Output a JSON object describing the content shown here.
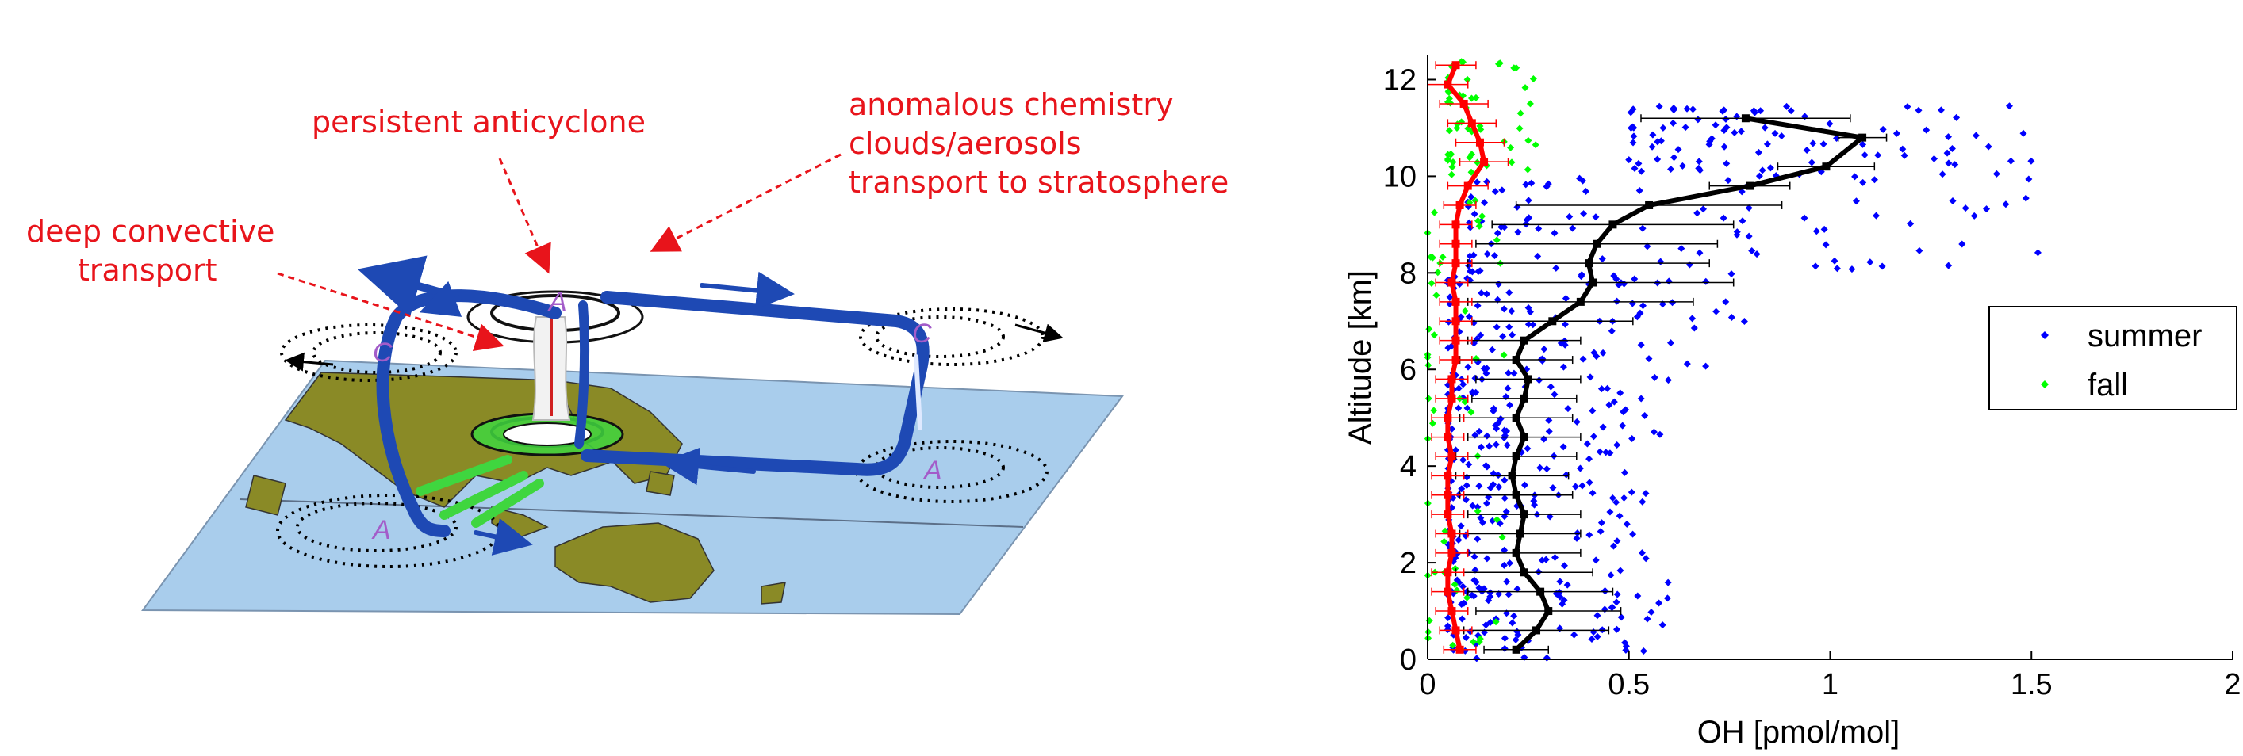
{
  "diagram": {
    "annotations": {
      "anticyclone": "persistent anticyclone",
      "chemistry_1": "anomalous chemistry",
      "chemistry_2": "clouds/aerosols",
      "chemistry_3": "transport to stratosphere",
      "convective_1": "deep convective",
      "convective_2": "transport"
    },
    "cell_labels": {
      "a_top": "A",
      "c_left": "C",
      "c_right": "C",
      "a_right": "A",
      "a_left": "A"
    },
    "colors": {
      "annotation": "#e8141b",
      "ocean": "#a9cdec",
      "land": "#8a8a26",
      "circulation": "#1e49b4",
      "inflow": "#3fd63f",
      "cell_label": "#a35cc9"
    },
    "icons": [
      "circulation-arrow-icon",
      "anticyclone-icon",
      "cyclone-icon",
      "map-icon"
    ]
  },
  "chart_data": {
    "type": "scatter",
    "xlabel": "OH [pmol/mol]",
    "ylabel": "Altitude [km]",
    "xlim": [
      0,
      2
    ],
    "ylim": [
      0,
      12.5
    ],
    "xticks": [
      "0",
      "0.5",
      "1",
      "1.5",
      "2"
    ],
    "yticks": [
      "0",
      "2",
      "4",
      "6",
      "8",
      "10",
      "12"
    ],
    "legend": {
      "position": "right",
      "entries": [
        "summer",
        "fall"
      ]
    },
    "series": [
      {
        "name": "summer",
        "color": "#0000ff",
        "marker": "diamond",
        "clusters": [
          {
            "y_range": [
              0,
              2
            ],
            "x_range": [
              0.05,
              0.6
            ]
          },
          {
            "y_range": [
              2,
              4
            ],
            "x_range": [
              0.05,
              0.55
            ]
          },
          {
            "y_range": [
              4,
              6
            ],
            "x_range": [
              0.05,
              0.6
            ]
          },
          {
            "y_range": [
              6,
              8
            ],
            "x_range": [
              0.05,
              0.8
            ]
          },
          {
            "y_range": [
              8,
              10
            ],
            "x_range": [
              0.1,
              1.6
            ]
          },
          {
            "y_range": [
              10,
              11.5
            ],
            "x_range": [
              0.5,
              1.55
            ]
          }
        ]
      },
      {
        "name": "fall",
        "color": "#00ff00",
        "marker": "diamond",
        "clusters": [
          {
            "y_range": [
              0,
              10
            ],
            "x_range": [
              0,
              0.2
            ]
          },
          {
            "y_range": [
              10,
              12.4
            ],
            "x_range": [
              0.05,
              0.27
            ]
          }
        ]
      },
      {
        "name": "",
        "color": "#000000",
        "type": "line",
        "x": [
          0.22,
          0.27,
          0.3,
          0.28,
          0.24,
          0.22,
          0.23,
          0.24,
          0.22,
          0.21,
          0.22,
          0.24,
          0.22,
          0.24,
          0.25,
          0.22,
          0.24,
          0.31,
          0.38,
          0.41,
          0.4,
          0.42,
          0.46,
          0.55,
          0.8,
          0.99,
          1.08,
          0.79
        ],
        "y": [
          0.2,
          0.6,
          1.0,
          1.4,
          1.8,
          2.2,
          2.6,
          3.0,
          3.4,
          3.8,
          4.2,
          4.6,
          5.0,
          5.4,
          5.8,
          6.2,
          6.6,
          7.0,
          7.4,
          7.8,
          8.2,
          8.6,
          9.0,
          9.4,
          9.8,
          10.2,
          10.8,
          11.2
        ],
        "xerr": [
          0.08,
          0.18,
          0.18,
          0.18,
          0.17,
          0.16,
          0.15,
          0.14,
          0.14,
          0.14,
          0.15,
          0.14,
          0.14,
          0.13,
          0.13,
          0.14,
          0.14,
          0.2,
          0.28,
          0.35,
          0.3,
          0.3,
          0.3,
          0.33,
          0.1,
          0.12,
          0.06,
          0.26
        ]
      },
      {
        "name": "",
        "color": "#ff0000",
        "type": "line",
        "x": [
          0.08,
          0.07,
          0.06,
          0.05,
          0.05,
          0.06,
          0.06,
          0.05,
          0.05,
          0.05,
          0.06,
          0.05,
          0.05,
          0.06,
          0.06,
          0.07,
          0.07,
          0.07,
          0.07,
          0.06,
          0.07,
          0.07,
          0.07,
          0.08,
          0.1,
          0.14,
          0.13,
          0.11,
          0.09,
          0.05,
          0.07
        ],
        "y": [
          0.2,
          0.6,
          1.0,
          1.4,
          1.8,
          2.2,
          2.6,
          3.0,
          3.4,
          3.8,
          4.2,
          4.6,
          5.0,
          5.4,
          5.8,
          6.2,
          6.6,
          7.0,
          7.4,
          7.8,
          8.2,
          8.6,
          9.0,
          9.4,
          9.8,
          10.3,
          10.7,
          11.1,
          11.5,
          11.9,
          12.3
        ],
        "xerr": [
          0.04,
          0.04,
          0.04,
          0.04,
          0.04,
          0.04,
          0.04,
          0.04,
          0.04,
          0.04,
          0.04,
          0.04,
          0.04,
          0.04,
          0.04,
          0.04,
          0.04,
          0.04,
          0.04,
          0.04,
          0.04,
          0.04,
          0.04,
          0.04,
          0.05,
          0.06,
          0.06,
          0.06,
          0.06,
          0.05,
          0.05
        ]
      }
    ]
  }
}
